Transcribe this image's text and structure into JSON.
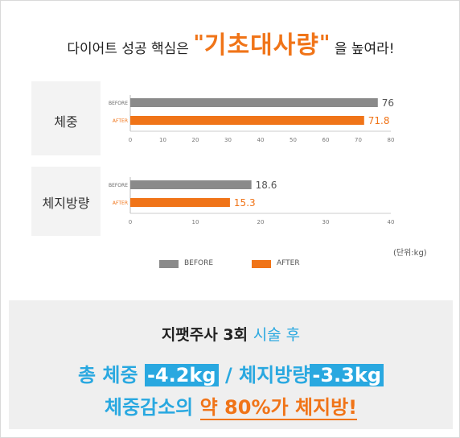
{
  "header": {
    "prefix": "다이어트 성공 핵심은",
    "open_quote": "\"",
    "keyword": "기초대사량",
    "close_quote": "\"",
    "suffix": "을 높여라!"
  },
  "chart_data": [
    {
      "type": "bar",
      "orientation": "horizontal",
      "title": "체중",
      "categories": [
        "BEFORE",
        "AFTER"
      ],
      "values": [
        76,
        71.8
      ],
      "value_labels": [
        "76",
        "71.8"
      ],
      "xlim": [
        0,
        80
      ],
      "ticks": [
        "0",
        "10",
        "20",
        "30",
        "40",
        "50",
        "60",
        "70",
        "80"
      ],
      "colors": [
        "#8a8a8a",
        "#f07418"
      ]
    },
    {
      "type": "bar",
      "orientation": "horizontal",
      "title": "체지방량",
      "categories": [
        "BEFORE",
        "AFTER"
      ],
      "values": [
        18.6,
        15.3
      ],
      "value_labels": [
        "18.6",
        "15.3"
      ],
      "xlim": [
        0,
        40
      ],
      "ticks": [
        "0",
        "10",
        "20",
        "30",
        "40"
      ],
      "colors": [
        "#8a8a8a",
        "#f07418"
      ]
    }
  ],
  "unit_label": "(단위:kg)",
  "legend": [
    {
      "label": "BEFORE",
      "color": "#8a8a8a"
    },
    {
      "label": "AFTER",
      "color": "#f07418"
    }
  ],
  "summary": {
    "title_main": "지팻주사 3회",
    "title_accent": "시술 후",
    "line1_a": "총 체중",
    "line1_box1": "-4.2kg",
    "line1_sep": "/ 체지방량",
    "line1_box2": "-3.3kg",
    "line2_a": "체중감소의",
    "line2_hl": "약 80%가 체지방!"
  }
}
